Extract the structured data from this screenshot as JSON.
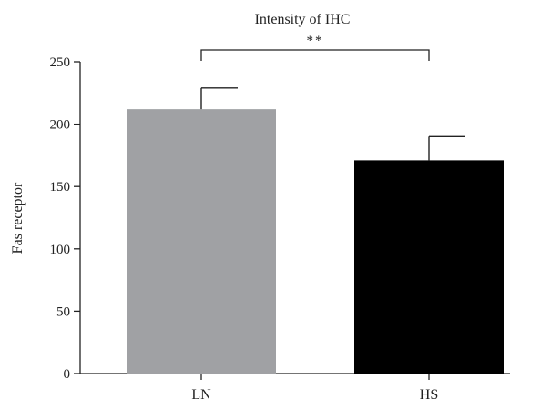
{
  "chart_data": {
    "type": "bar",
    "title": "Intensity of IHC",
    "xlabel": "",
    "ylabel": "Fas receptor",
    "categories": [
      "LN",
      "HS"
    ],
    "values": [
      212,
      171
    ],
    "errors": [
      17,
      19
    ],
    "bar_colors": [
      "#a0a1a4",
      "#000000"
    ],
    "ylim": [
      0,
      250
    ],
    "yticks": [
      0,
      50,
      100,
      150,
      200,
      250
    ],
    "significance": {
      "label": "**",
      "between": [
        "LN",
        "HS"
      ]
    },
    "grid": false,
    "legend": "none"
  }
}
